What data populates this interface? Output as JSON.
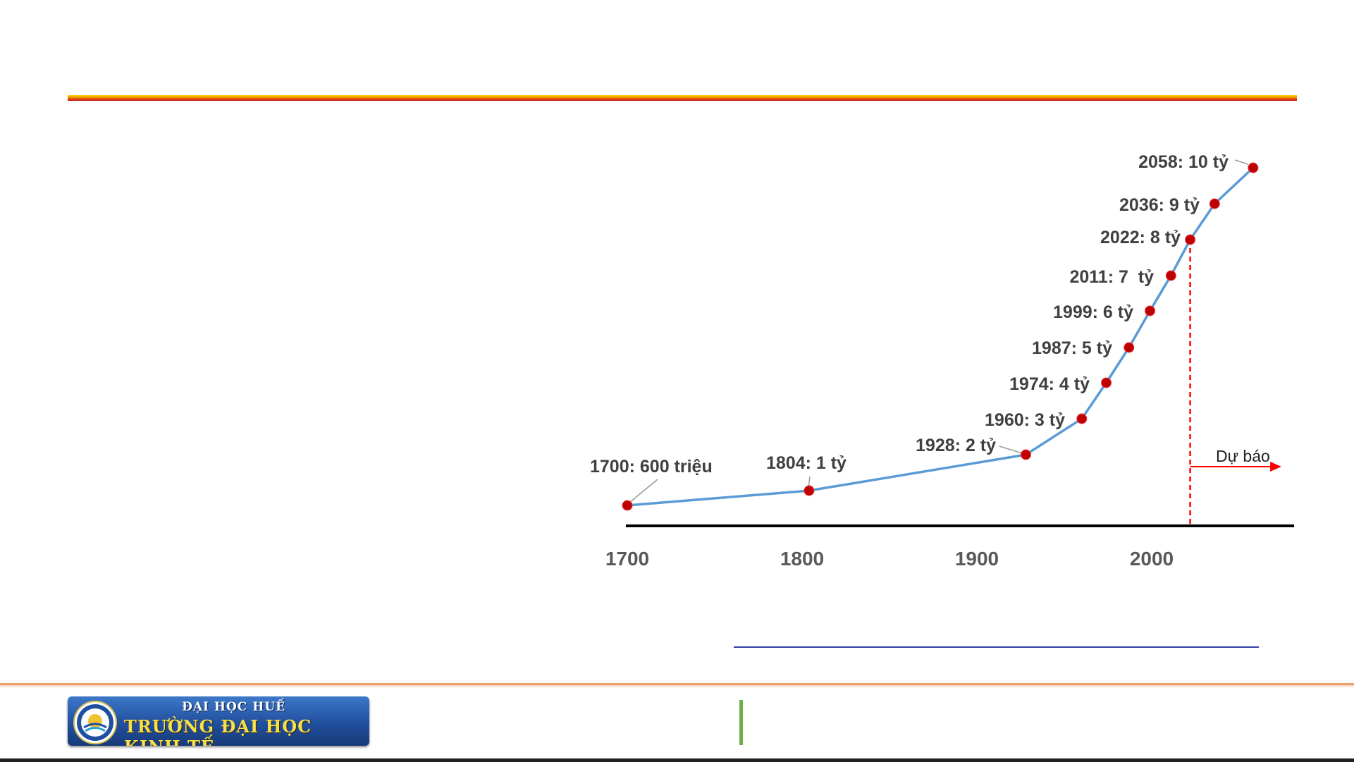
{
  "footer": {
    "logo_line1": "ĐẠI HỌC HUẾ",
    "logo_line2": "TRƯỜNG ĐẠI HỌC KINH TẾ"
  },
  "colors": {
    "top_rule_gradient": [
      "#ffd400",
      "#f3a100",
      "#e0450e",
      "#c0181a"
    ],
    "line": "#5b9bd5",
    "marker": "#c00000",
    "forecast": "#ff0000",
    "axis": "#000000",
    "label_text": "#404040"
  },
  "chart_data": {
    "type": "line",
    "x": [
      1700,
      1804,
      1928,
      1960,
      1974,
      1987,
      1999,
      2011,
      2022,
      2036,
      2058
    ],
    "y": [
      0.6,
      1,
      2,
      3,
      4,
      5,
      6,
      7,
      8,
      9,
      10
    ],
    "point_labels": [
      "1700: 600 triệu",
      "1804: 1 tỷ",
      "1928: 2 tỷ",
      "1960: 3 tỷ",
      "1974: 4 tỷ",
      "1987: 5 tỷ",
      "1999: 6 tỷ",
      "2011: 7  tỷ",
      "2022: 8 tỷ",
      "2036: 9 tỷ",
      "2058: 10 tỷ"
    ],
    "x_ticks": [
      1700,
      1800,
      1900,
      2000
    ],
    "xlim": [
      1700,
      2082
    ],
    "ylim": [
      0,
      10
    ],
    "forecast": {
      "from_year": 2022,
      "label": "Dự báo"
    },
    "grid": false,
    "legend": "none"
  }
}
